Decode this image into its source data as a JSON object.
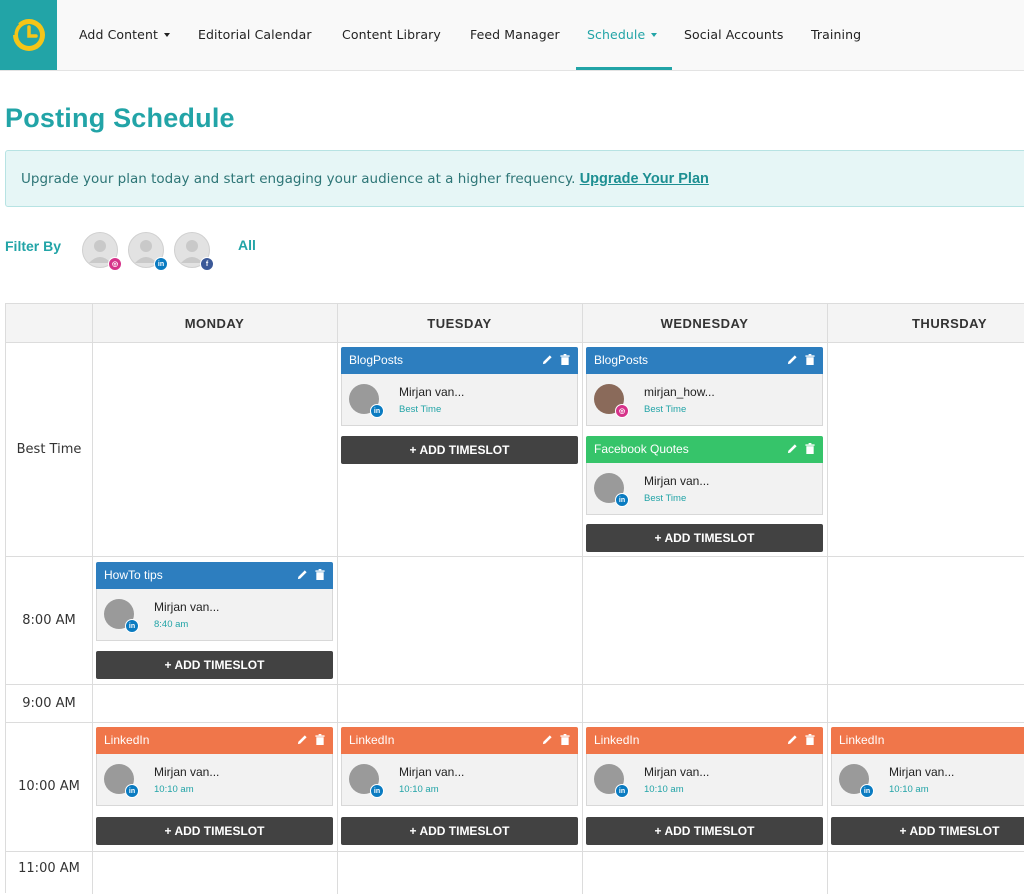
{
  "nav": {
    "items": [
      {
        "label": "Add Content",
        "dropdown": true
      },
      {
        "label": "Editorial Calendar"
      },
      {
        "label": "Content Library"
      },
      {
        "label": "Feed Manager"
      },
      {
        "label": "Schedule",
        "dropdown": true,
        "active": true
      },
      {
        "label": "Social Accounts"
      },
      {
        "label": "Training"
      }
    ]
  },
  "page": {
    "title": "Posting Schedule",
    "alert_text": "Upgrade your plan today and start engaging your audience at a higher frequency.",
    "alert_link": "Upgrade Your Plan"
  },
  "filter": {
    "label": "Filter By",
    "all_label": "All",
    "accounts": [
      {
        "network": "instagram-icon"
      },
      {
        "network": "linkedin-icon"
      },
      {
        "network": "facebook-icon"
      }
    ]
  },
  "schedule": {
    "days": [
      "MONDAY",
      "TUESDAY",
      "WEDNESDAY",
      "THURSDAY"
    ],
    "times": [
      "Best Time",
      "8:00 AM",
      "9:00 AM",
      "10:00 AM",
      "11:00 AM"
    ],
    "add_label": "+ ADD TIMESLOT",
    "slots": {
      "tue_best": {
        "title": "BlogPosts",
        "name": "Mirjan van...",
        "time": "Best Time"
      },
      "wed_best_1": {
        "title": "BlogPosts",
        "name": "mirjan_how...",
        "time": "Best Time"
      },
      "wed_best_2": {
        "title": "Facebook Quotes",
        "name": "Mirjan van...",
        "time": "Best Time"
      },
      "mon_8": {
        "title": "HowTo tips",
        "name": "Mirjan van...",
        "time": "8:40 am"
      },
      "mon_10": {
        "title": "LinkedIn",
        "name": "Mirjan van...",
        "time": "10:10 am"
      },
      "tue_10": {
        "title": "LinkedIn",
        "name": "Mirjan van...",
        "time": "10:10 am"
      },
      "wed_10": {
        "title": "LinkedIn",
        "name": "Mirjan van...",
        "time": "10:10 am"
      },
      "thu_10": {
        "title": "LinkedIn",
        "name": "Mirjan van...",
        "time": "10:10 am"
      }
    }
  },
  "colors": {
    "brand": "#22a4a7",
    "blog": "#2d7ebf",
    "facebook_quotes": "#36c46a",
    "linkedin": "#f0764a",
    "button": "#424242"
  }
}
